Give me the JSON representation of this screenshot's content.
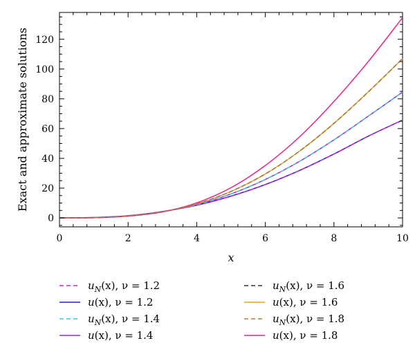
{
  "chart_data": {
    "type": "line",
    "xlabel": "x",
    "ylabel": "Exact and approximate solutions",
    "xlim": [
      0,
      10
    ],
    "ylim": [
      -6,
      138
    ],
    "x_ticks": [
      0,
      2,
      4,
      6,
      8,
      10
    ],
    "y_ticks": [
      0,
      20,
      40,
      60,
      80,
      100,
      120
    ],
    "grid": false,
    "legend_position": "bottom",
    "series": [
      {
        "name": "u_N(x), ν = 1.2",
        "label_main": "u",
        "label_sub": "N",
        "label_rest": "(x), ν = 1.2",
        "nu": 1.2,
        "kind": "approximate",
        "color": "#cc22cc",
        "dashed": true,
        "x": [
          0,
          1,
          2,
          3,
          4,
          5,
          6,
          7,
          8,
          9,
          10
        ],
        "y": [
          0,
          0.3,
          1.5,
          4.3,
          8.5,
          14.6,
          22.4,
          31.9,
          42.9,
          54.9,
          65.7
        ]
      },
      {
        "name": "u(x), ν = 1.2",
        "label_main": "u",
        "label_sub": "",
        "label_rest": "(x), ν = 1.2",
        "nu": 1.2,
        "kind": "exact",
        "color": "#1f1fd6",
        "dashed": false,
        "x": [
          0,
          1,
          2,
          3,
          4,
          5,
          6,
          7,
          8,
          9,
          10
        ],
        "y": [
          0,
          0.3,
          1.5,
          4.3,
          8.5,
          14.6,
          22.4,
          31.9,
          42.9,
          54.9,
          65.7
        ]
      },
      {
        "name": "u_N(x), ν = 1.4",
        "label_main": "u",
        "label_sub": "N",
        "label_rest": "(x), ν = 1.4",
        "nu": 1.4,
        "kind": "approximate",
        "color": "#43c3d6",
        "dashed": true,
        "x": [
          0,
          1,
          2,
          3,
          4,
          5,
          6,
          7,
          8,
          9,
          10
        ],
        "y": [
          0,
          0.2,
          1.4,
          4.2,
          8.9,
          16.1,
          25.8,
          38.0,
          52.4,
          68.3,
          84.5
        ]
      },
      {
        "name": "u(x), ν = 1.4",
        "label_main": "u",
        "label_sub": "",
        "label_rest": "(x), ν = 1.4",
        "nu": 1.4,
        "kind": "exact",
        "color": "#a020f0",
        "dashed": false,
        "x": [
          0,
          1,
          2,
          3,
          4,
          5,
          6,
          7,
          8,
          9,
          10
        ],
        "y": [
          0,
          0.2,
          1.4,
          4.2,
          8.9,
          16.1,
          25.8,
          38.0,
          52.4,
          68.3,
          84.5
        ]
      },
      {
        "name": "u_N(x), ν = 1.6",
        "label_main": "u",
        "label_sub": "N",
        "label_rest": "(x), ν = 1.6",
        "nu": 1.6,
        "kind": "approximate",
        "color": "#333333",
        "dashed": true,
        "x": [
          0,
          1,
          2,
          3,
          4,
          5,
          6,
          7,
          8,
          9,
          10
        ],
        "y": [
          0,
          0.15,
          1.3,
          4.1,
          9.4,
          17.8,
          29.5,
          44.9,
          63.5,
          84.6,
          107
        ]
      },
      {
        "name": "u(x), ν = 1.6",
        "label_main": "u",
        "label_sub": "",
        "label_rest": "(x), ν = 1.6",
        "nu": 1.6,
        "kind": "exact",
        "color": "#e8a020",
        "dashed": false,
        "x": [
          0,
          1,
          2,
          3,
          4,
          5,
          6,
          7,
          8,
          9,
          10
        ],
        "y": [
          0,
          0.15,
          1.3,
          4.1,
          9.4,
          17.8,
          29.5,
          44.9,
          63.5,
          84.6,
          107
        ]
      },
      {
        "name": "u_N(x), ν = 1.8",
        "label_main": "u",
        "label_sub": "N",
        "label_rest": "(x), ν = 1.8",
        "nu": 1.8,
        "kind": "approximate",
        "color": "#b08040",
        "dashed": true,
        "x": [
          0,
          1,
          2,
          3,
          4,
          5,
          6,
          7,
          8,
          9,
          10
        ],
        "y": [
          0,
          0.15,
          1.3,
          4.1,
          9.4,
          17.8,
          29.5,
          44.9,
          63.5,
          84.6,
          107
        ]
      },
      {
        "name": "u(x), ν = 1.8",
        "label_main": "u",
        "label_sub": "",
        "label_rest": "(x), ν = 1.8",
        "nu": 1.8,
        "kind": "exact",
        "color": "#e8208a",
        "dashed": false,
        "x": [
          0,
          1,
          2,
          3,
          4,
          5,
          6,
          7,
          8,
          9,
          10
        ],
        "y": [
          0,
          0.1,
          1.2,
          4.0,
          10.1,
          20.3,
          35.2,
          54.5,
          78.2,
          105,
          134.5
        ]
      }
    ]
  }
}
